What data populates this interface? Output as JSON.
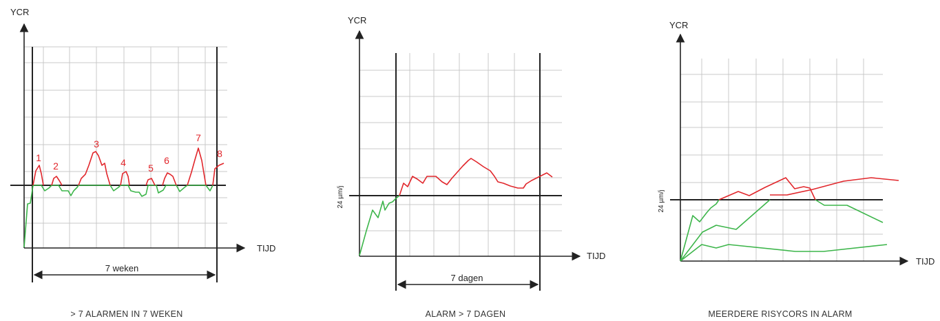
{
  "colors": {
    "alarm": "#e1262b",
    "normal": "#3cb54a",
    "grid": "#c8c8c8",
    "axis": "#222222"
  },
  "chart_data": [
    {
      "type": "line",
      "ylabel": "YCR",
      "xlabel": "TIJD",
      "span_label": "7 weken",
      "caption": "> 7 ALARMEN IN 7 WEKEN",
      "peak_labels": [
        "1",
        "2",
        "3",
        "4",
        "5",
        "6",
        "7",
        "8"
      ],
      "grid": true
    },
    {
      "type": "line",
      "ylabel": "YCR",
      "xlabel": "TIJD",
      "threshold_label": "24 µm/j",
      "span_label": "7 dagen",
      "caption": "ALARM > 7 DAGEN",
      "grid": true
    },
    {
      "type": "line",
      "ylabel": "YCR",
      "xlabel": "TIJD",
      "threshold_label": "24 µm/j",
      "caption": "MEERDERE RISYCORS IN ALARM",
      "grid": true
    }
  ]
}
